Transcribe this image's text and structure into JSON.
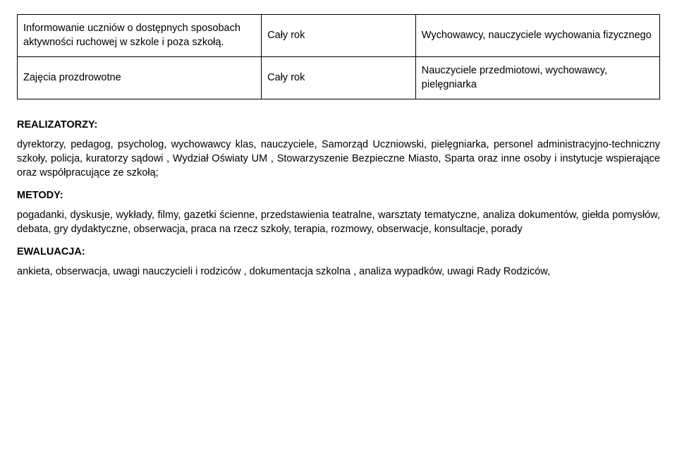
{
  "table": {
    "rows": [
      {
        "c1": "Informowanie uczniów o dostępnych sposobach aktywności ruchowej w szkole i poza szkołą.",
        "c2": "Cały rok",
        "c3": "Wychowawcy, nauczyciele wychowania fizycznego"
      },
      {
        "c1": "Zajęcia prozdrowotne",
        "c2": "Cały rok",
        "c3": "Nauczyciele przedmiotowi, wychowawcy, pielęgniarka"
      }
    ]
  },
  "sections": {
    "realizatorzy_title": "REALIZATORZY:",
    "realizatorzy_text": "dyrektorzy, pedagog, psycholog, wychowawcy klas, nauczyciele, Samorząd Uczniowski, pielęgniarka, personel administracyjno-techniczny szkoły, policja, kuratorzy sądowi , Wydział Oświaty UM , Stowarzyszenie Bezpieczne Miasto, Sparta oraz inne osoby i instytucje wspierające oraz współpracujące ze szkołą;",
    "metody_title": "METODY:",
    "metody_text": "pogadanki, dyskusje, wykłady, filmy, gazetki ścienne, przedstawienia teatralne, warsztaty tematyczne, analiza dokumentów, giełda pomysłów, debata, gry dydaktyczne, obserwacja,  praca na rzecz szkoły, terapia, rozmowy, obserwacje, konsultacje, porady",
    "ewaluacja_title": "EWALUACJA:",
    "ewaluacja_text": "ankieta, obserwacja, uwagi nauczycieli i rodziców , dokumentacja szkolna , analiza wypadków, uwagi Rady Rodziców,"
  }
}
